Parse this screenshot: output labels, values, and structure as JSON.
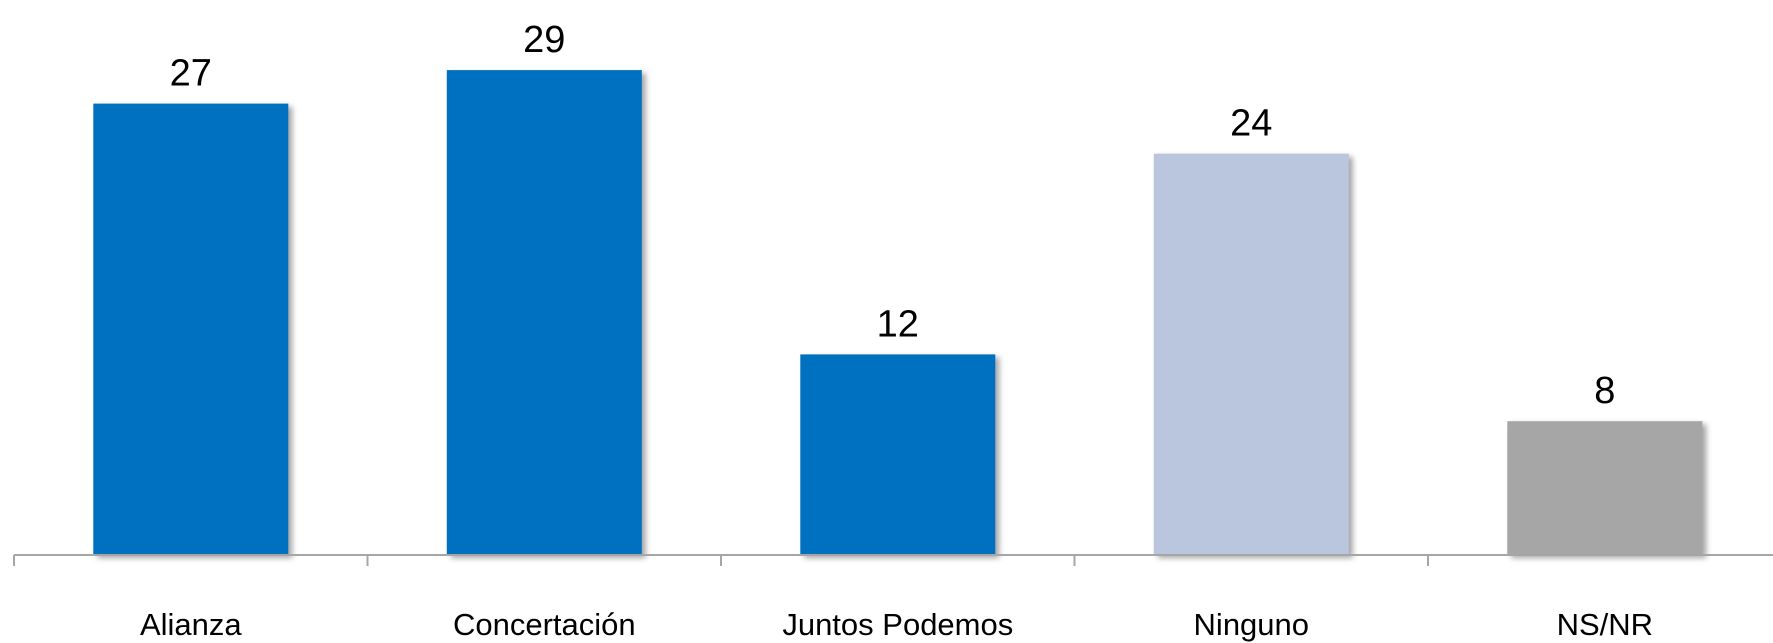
{
  "chart_data": {
    "type": "bar",
    "title": "",
    "xlabel": "",
    "ylabel": "",
    "categories": [
      "Alianza",
      "Concertación",
      "Juntos Podemos",
      "Ninguno",
      "NS/NR"
    ],
    "values": [
      27,
      29,
      12,
      24,
      8
    ],
    "value_labels": [
      "27",
      "29",
      "12",
      "24",
      "8"
    ],
    "bar_colors": [
      "#0070C0",
      "#0070C0",
      "#0070C0",
      "#B9C6DE",
      "#A6A6A6"
    ],
    "ylim": [
      0,
      29
    ],
    "grid": false,
    "legend": "none"
  }
}
